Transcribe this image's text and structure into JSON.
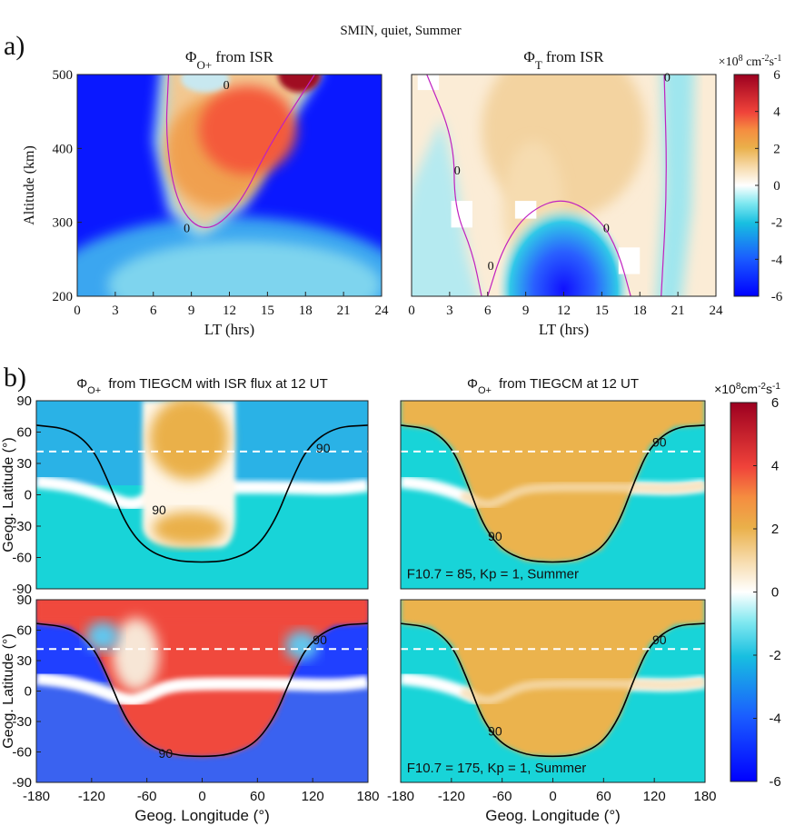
{
  "title": "SMIN, quiet, Summer",
  "panel_labels": [
    "a)",
    "b)"
  ],
  "chart_data": [
    {
      "type": "heatmap",
      "title": {
        "symbol": "Φ",
        "subscript": "O+",
        "text": "from ISR"
      },
      "xlabel": "LT (hrs)",
      "ylabel": "Altitude (km)",
      "xlim": [
        0,
        24
      ],
      "xticks": [
        0,
        3,
        6,
        9,
        12,
        15,
        18,
        21,
        24
      ],
      "ylim": [
        200,
        500
      ],
      "yticks": [
        200,
        300,
        400,
        500
      ],
      "annotations": [
        "0",
        "0"
      ]
    },
    {
      "type": "heatmap",
      "title": {
        "symbol": "Φ",
        "subscript": "T",
        "text": "from ISR"
      },
      "xlabel": "LT (hrs)",
      "xlim": [
        0,
        24
      ],
      "xticks": [
        0,
        3,
        6,
        9,
        12,
        15,
        18,
        21,
        24
      ],
      "ylim": [
        200,
        500
      ],
      "annotations": [
        "0",
        "0",
        "0",
        "0"
      ]
    },
    {
      "type": "colorbar",
      "unit": {
        "base": "×10",
        "exp": "8",
        "unit1": " cm",
        "exp1": "-2",
        "unit2": "s",
        "exp2": "-1"
      },
      "ylim": [
        -6,
        6
      ],
      "yticks": [
        -6,
        -4,
        -2,
        0,
        2,
        4,
        6
      ]
    },
    {
      "type": "heatmap",
      "title": {
        "symbol": "Φ",
        "subscript": "O+",
        "text": " from TIEGCM with ISR flux at 12 UT"
      },
      "ylabel": "Geog. Latitude (°)",
      "xlim": [
        -180,
        180
      ],
      "ylim": [
        -90,
        90
      ],
      "yticks": [
        -90,
        -60,
        -30,
        0,
        30,
        60,
        90
      ],
      "annotations": [
        "90",
        "90"
      ]
    },
    {
      "type": "heatmap",
      "title": {
        "symbol": "Φ",
        "subscript": "O+",
        "text": " from TIEGCM at 12 UT"
      },
      "xlim": [
        -180,
        180
      ],
      "ylim": [
        -90,
        90
      ],
      "annotations": [
        "90",
        "90",
        "F10.7 = 85, Kp = 1, Summer"
      ]
    },
    {
      "type": "heatmap",
      "xlabel": "Geog. Longitude (°)",
      "ylabel": "Geog. Latitude (°)",
      "xlim": [
        -180,
        180
      ],
      "xticks": [
        -180,
        -120,
        -60,
        0,
        60,
        120,
        180
      ],
      "ylim": [
        -90,
        90
      ],
      "yticks": [
        -90,
        -60,
        -30,
        0,
        30,
        60,
        90
      ],
      "annotations": [
        "90",
        "90"
      ]
    },
    {
      "type": "heatmap",
      "xlabel": "Geog. Longitude (°)",
      "xlim": [
        -180,
        180
      ],
      "xticks": [
        -180,
        -120,
        -60,
        0,
        60,
        120,
        180
      ],
      "ylim": [
        -90,
        90
      ],
      "annotations": [
        "90",
        "90",
        "F10.7 = 175, Kp = 1, Summer"
      ]
    },
    {
      "type": "colorbar",
      "unit": {
        "base": "×10",
        "exp": "8",
        "unit1": "cm",
        "exp1": "-2",
        "unit2": "s",
        "exp2": "-1"
      },
      "ylim": [
        -6,
        6
      ],
      "yticks": [
        -6,
        -4,
        -2,
        0,
        2,
        4,
        6
      ]
    }
  ]
}
